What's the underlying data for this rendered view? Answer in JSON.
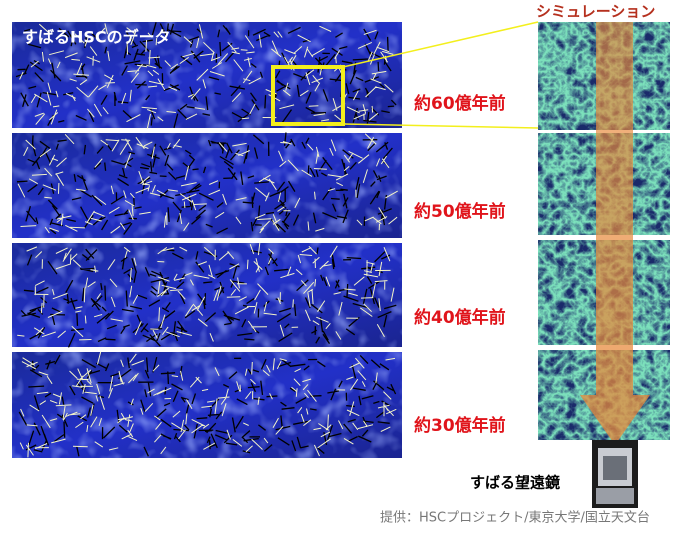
{
  "data_title": "すばるHSCのデータ",
  "simulation_title": "シミュレーション",
  "epochs": [
    "約60億年前",
    "約50億年前",
    "約40億年前",
    "約30億年前"
  ],
  "telescope_label": "すばる望遠鏡",
  "credit": "提供：HSCプロジェクト/東京大学/国立天文台"
}
